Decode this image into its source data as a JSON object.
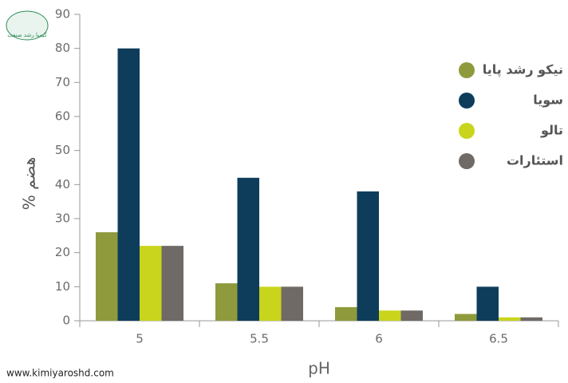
{
  "chart_data": {
    "type": "bar",
    "y_label": "% هضم",
    "x_label": "pH",
    "website": "www.kimiyaroshd.com",
    "logo_text": "کیمیا رشد صنعت",
    "categories": [
      "5",
      "5.5",
      "6",
      "6.5"
    ],
    "series": [
      {
        "name": "نیکو رشد پایا",
        "color": "#8f9a3c",
        "values": [
          26,
          11,
          4,
          2
        ]
      },
      {
        "name": "سویا",
        "color": "#0e3d5c",
        "values": [
          80,
          42,
          38,
          10
        ]
      },
      {
        "name": "تالو",
        "color": "#c9d41c",
        "values": [
          22,
          10,
          3,
          1
        ]
      },
      {
        "name": "استئارات",
        "color": "#6f6a66",
        "values": [
          22,
          10,
          3,
          1
        ]
      }
    ],
    "ylim": [
      0,
      90
    ],
    "yticks": [
      0,
      10,
      20,
      30,
      40,
      50,
      60,
      70,
      80,
      90
    ]
  }
}
